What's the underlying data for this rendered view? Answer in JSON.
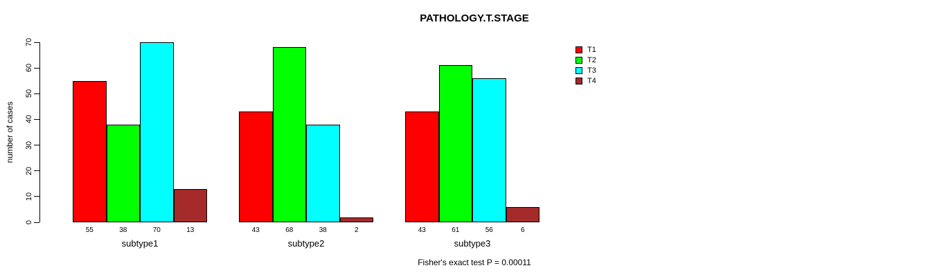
{
  "header": {
    "title": "PATHOLOGY.T.STAGE"
  },
  "chart_data": {
    "type": "bar",
    "title": "PATHOLOGY.T.STAGE",
    "categories": [
      "subtype1",
      "subtype2",
      "subtype3"
    ],
    "series": [
      {
        "name": "T1",
        "color": "#ff0000",
        "values": [
          55,
          43,
          43
        ]
      },
      {
        "name": "T2",
        "color": "#00ff00",
        "values": [
          38,
          68,
          61
        ]
      },
      {
        "name": "T3",
        "color": "#00ffff",
        "values": [
          70,
          38,
          56
        ]
      },
      {
        "name": "T4",
        "color": "#a52a2a",
        "values": [
          13,
          2,
          6
        ]
      }
    ],
    "bar_value_labels": [
      [
        55,
        38,
        70,
        13
      ],
      [
        43,
        68,
        38,
        2
      ],
      [
        43,
        61,
        56,
        6
      ]
    ],
    "xlabel": "",
    "ylabel": "number of cases",
    "ylim": [
      0,
      70
    ],
    "yticks": [
      0,
      10,
      20,
      30,
      40,
      50,
      60,
      70
    ],
    "grid": false,
    "legend_position": "right-outside",
    "legend_entries": [
      "T1",
      "T2",
      "T3",
      "T4"
    ],
    "annotation": "Fisher's exact test P = 0.00011"
  }
}
